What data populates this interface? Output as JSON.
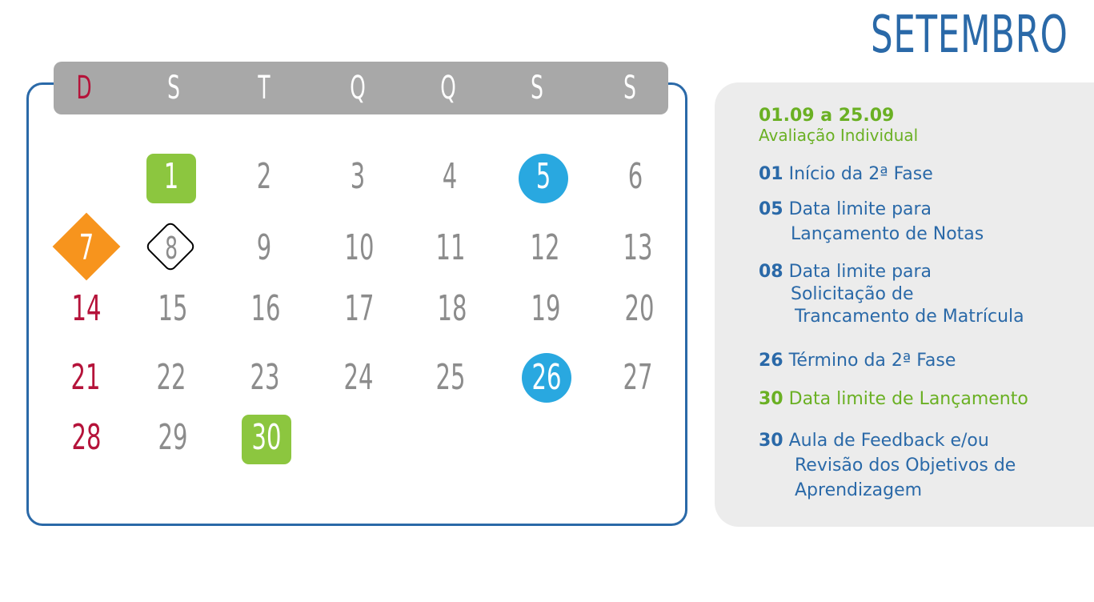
{
  "month": "SETEMBRO",
  "colors": {
    "blue": "#2a69a8",
    "green": "#8cc63f",
    "light_blue": "#29a8e0",
    "orange": "#f7941d",
    "red": "#b5133a",
    "gray_text": "#8c8c8c",
    "bar_gray": "#a8a8a8"
  },
  "weekdays": [
    "D",
    "S",
    "T",
    "Q",
    "Q",
    "S",
    "S"
  ],
  "days": [
    "1",
    "2",
    "3",
    "4",
    "5",
    "6",
    "7",
    "8",
    "9",
    "10",
    "11",
    "12",
    "13",
    "14",
    "15",
    "16",
    "17",
    "18",
    "19",
    "20",
    "21",
    "22",
    "23",
    "24",
    "25",
    "26",
    "27",
    "28",
    "29",
    "30"
  ],
  "legend": {
    "item1_date": "01.09 a 25.09",
    "item1_desc": "Avaliação Individual",
    "item2_num": "01",
    "item2_text": "Início da 2ª Fase",
    "item3_num": "05",
    "item3_line1": "Data limite para",
    "item3_line2": "Lançamento de Notas",
    "item4_num": "08",
    "item4_line1": "Data limite para",
    "item4_line2": "Solicitação de",
    "item4_line3": "Trancamento de Matrícula",
    "item5_num": "26",
    "item5_text": "Término da 2ª Fase",
    "item6_num": "30",
    "item6_text": "Data limite de Lançamento",
    "item7_num": "30",
    "item7_line1": "Aula de Feedback e/ou",
    "item7_line2": "Revisão dos Objetivos de",
    "item7_line3": "Aprendizagem"
  }
}
